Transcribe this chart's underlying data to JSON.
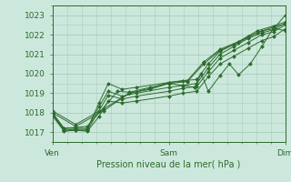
{
  "title": "Pression niveau de la mer( hPa )",
  "xlabel_ticks": [
    "Ven",
    "Sam",
    "Dim"
  ],
  "xlabel_tick_pos": [
    0.0,
    0.5,
    1.0
  ],
  "ylim": [
    1016.5,
    1023.5
  ],
  "yticks": [
    1017,
    1018,
    1019,
    1020,
    1021,
    1022,
    1023
  ],
  "bg_color": "#cce8dc",
  "grid_color": "#a8ccbc",
  "line_color": "#2d6b2d",
  "marker_color": "#2d6b2d",
  "series": [
    [
      0.0,
      1018.0,
      0.05,
      1017.1,
      0.1,
      1017.15,
      0.15,
      1017.15,
      0.2,
      1018.5,
      0.24,
      1019.5,
      0.3,
      1019.2,
      0.36,
      1019.3,
      0.5,
      1019.55,
      0.56,
      1019.65,
      0.62,
      1019.7,
      0.67,
      1020.5,
      0.72,
      1021.15,
      0.78,
      1021.5,
      0.84,
      1021.9,
      0.9,
      1022.2,
      0.95,
      1022.3,
      1.0,
      1023.0
    ],
    [
      0.0,
      1017.85,
      0.05,
      1017.05,
      0.1,
      1017.1,
      0.15,
      1017.05,
      0.2,
      1017.8,
      0.24,
      1018.6,
      0.3,
      1018.5,
      0.36,
      1018.6,
      0.5,
      1018.85,
      0.56,
      1019.0,
      0.62,
      1019.1,
      0.67,
      1019.85,
      0.72,
      1020.5,
      0.78,
      1020.9,
      0.84,
      1021.3,
      0.9,
      1021.7,
      0.95,
      1021.9,
      1.0,
      1022.3
    ],
    [
      0.0,
      1017.9,
      0.05,
      1017.1,
      0.1,
      1017.1,
      0.15,
      1017.1,
      0.2,
      1018.1,
      0.24,
      1018.9,
      0.3,
      1018.7,
      0.36,
      1018.85,
      0.5,
      1019.1,
      0.56,
      1019.25,
      0.62,
      1019.35,
      0.67,
      1020.1,
      0.72,
      1020.8,
      0.78,
      1021.2,
      0.84,
      1021.6,
      0.9,
      1022.0,
      0.95,
      1022.15,
      1.0,
      1022.5
    ],
    [
      0.0,
      1017.95,
      0.05,
      1017.2,
      0.1,
      1017.2,
      0.15,
      1017.2,
      0.2,
      1018.3,
      0.24,
      1019.1,
      0.3,
      1018.85,
      0.36,
      1019.0,
      0.5,
      1019.3,
      0.56,
      1019.4,
      0.62,
      1019.5,
      0.67,
      1020.3,
      0.72,
      1021.0,
      0.78,
      1021.4,
      0.84,
      1021.8,
      0.9,
      1022.1,
      0.95,
      1022.25,
      1.0,
      1022.6
    ],
    [
      0.0,
      1018.0,
      0.05,
      1017.2,
      0.1,
      1017.25,
      0.15,
      1017.3,
      0.28,
      1019.1,
      0.33,
      1019.05,
      0.42,
      1019.3,
      0.5,
      1019.5,
      0.56,
      1019.4,
      0.61,
      1019.3,
      0.64,
      1020.0,
      0.67,
      1019.1,
      0.72,
      1019.9,
      0.76,
      1020.5,
      0.8,
      1019.95,
      0.85,
      1020.5,
      0.9,
      1021.4,
      0.95,
      1022.35,
      1.0,
      1022.2
    ],
    [
      0.0,
      1018.0,
      0.1,
      1017.3,
      0.22,
      1018.1,
      0.33,
      1019.0,
      0.42,
      1019.2,
      0.5,
      1019.5,
      0.58,
      1019.6,
      0.65,
      1020.5,
      0.72,
      1021.2,
      0.8,
      1021.6,
      0.88,
      1022.1,
      0.95,
      1022.4,
      1.0,
      1022.55
    ],
    [
      0.0,
      1018.1,
      0.1,
      1017.4,
      0.22,
      1018.2,
      0.33,
      1019.0,
      0.42,
      1019.25,
      0.5,
      1019.55,
      0.58,
      1019.65,
      0.65,
      1020.6,
      0.72,
      1021.25,
      0.8,
      1021.65,
      0.88,
      1022.2,
      0.95,
      1022.45,
      1.0,
      1022.65
    ]
  ]
}
